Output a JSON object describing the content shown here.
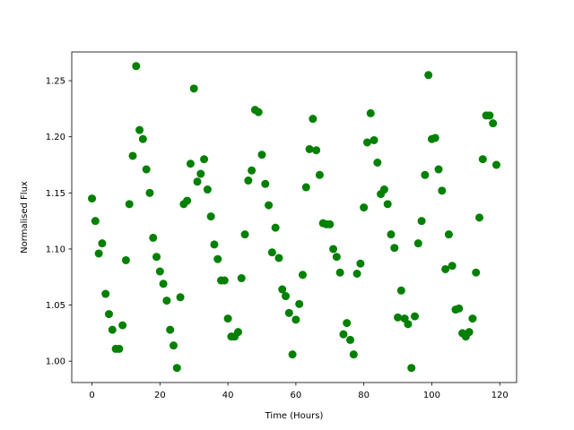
{
  "chart_data": {
    "type": "scatter",
    "xlabel": "Time (Hours)",
    "ylabel": "Normalised Flux",
    "color": "#008000",
    "xlim": [
      -5.95,
      124.95
    ],
    "ylim": [
      0.981,
      1.2756
    ],
    "xticks": [
      0,
      20,
      40,
      60,
      80,
      100,
      120
    ],
    "yticks": [
      {
        "value": 1.0,
        "label": "1.00"
      },
      1.05,
      {
        "value": 1.1,
        "label": "1.10"
      },
      1.15,
      {
        "value": 1.2,
        "label": "1.20"
      },
      1.25
    ],
    "x": [
      0,
      1,
      2,
      3,
      4,
      5,
      6,
      7,
      8,
      9,
      10,
      11,
      12,
      13,
      14,
      15,
      16,
      17,
      18,
      19,
      20,
      21,
      22,
      23,
      24,
      25,
      26,
      27,
      28,
      29,
      30,
      31,
      32,
      33,
      34,
      35,
      36,
      37,
      38,
      39,
      40,
      41,
      42,
      43,
      44,
      45,
      46,
      47,
      48,
      49,
      50,
      51,
      52,
      53,
      54,
      55,
      56,
      57,
      58,
      59,
      60,
      61,
      62,
      63,
      64,
      65,
      66,
      67,
      68,
      69,
      70,
      71,
      72,
      73,
      74,
      75,
      76,
      77,
      78,
      79,
      80,
      81,
      82,
      83,
      84,
      85,
      86,
      87,
      88,
      89,
      90,
      91,
      92,
      93,
      94,
      95,
      96,
      97,
      98,
      99,
      100,
      101,
      102,
      103,
      104,
      105,
      106,
      107,
      108,
      109,
      110,
      111,
      112,
      113,
      114,
      115,
      116,
      117,
      118,
      119
    ],
    "y": [
      1.145,
      1.125,
      1.096,
      1.105,
      1.06,
      1.042,
      1.028,
      1.011,
      1.011,
      1.032,
      1.09,
      1.14,
      1.183,
      1.263,
      1.206,
      1.198,
      1.171,
      1.15,
      1.11,
      1.093,
      1.08,
      1.069,
      1.054,
      1.028,
      1.014,
      0.994,
      1.057,
      1.14,
      1.143,
      1.176,
      1.243,
      1.16,
      1.167,
      1.18,
      1.153,
      1.129,
      1.104,
      1.091,
      1.072,
      1.072,
      1.038,
      1.022,
      1.022,
      1.026,
      1.074,
      1.113,
      1.161,
      1.17,
      1.224,
      1.222,
      1.184,
      1.158,
      1.139,
      1.097,
      1.119,
      1.092,
      1.064,
      1.058,
      1.043,
      1.006,
      1.037,
      1.051,
      1.077,
      1.155,
      1.189,
      1.216,
      1.188,
      1.166,
      1.123,
      1.122,
      1.122,
      1.1,
      1.093,
      1.079,
      1.024,
      1.034,
      1.019,
      1.006,
      1.078,
      1.087,
      1.137,
      1.195,
      1.221,
      1.197,
      1.177,
      1.149,
      1.153,
      1.14,
      1.113,
      1.101,
      1.039,
      1.063,
      1.038,
      1.033,
      0.994,
      1.04,
      1.105,
      1.125,
      1.166,
      1.255,
      1.198,
      1.199,
      1.171,
      1.152,
      1.082,
      1.113,
      1.085,
      1.046,
      1.047,
      1.025,
      1.022,
      1.026,
      1.038,
      1.079,
      1.128,
      1.18,
      1.219,
      1.219,
      1.212,
      1.175
    ]
  }
}
